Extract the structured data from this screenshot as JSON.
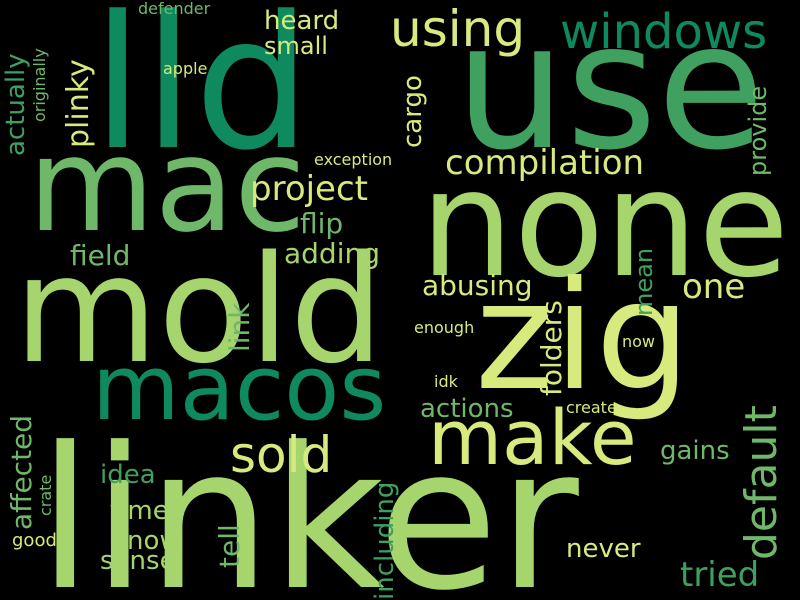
{
  "palette": {
    "background": "#000000",
    "dark_green": "#0f8a5f",
    "green": "#3fa060",
    "mid_green": "#6fb86a",
    "light_green": "#a6d46d",
    "yellow_green": "#d6ea7d"
  },
  "words": {
    "lld": "lld",
    "use": "use",
    "using": "using",
    "windows": "windows",
    "mac": "mac",
    "none": "none",
    "mold": "mold",
    "zig": "zig",
    "macos": "macos",
    "make": "make",
    "linker": "linker",
    "default": "default",
    "compilation": "compilation",
    "project": "project",
    "plinky": "plinky",
    "actually": "actually",
    "originally": "originally",
    "defender": "defender",
    "apple": "apple",
    "heard": "heard",
    "small": "small",
    "cargo": "cargo",
    "provide": "provide",
    "exception": "exception",
    "flip": "flip",
    "field": "field",
    "adding": "adding",
    "abusing": "abusing",
    "one": "one",
    "link": "link",
    "mean": "mean",
    "enough": "enough",
    "now": "now",
    "folders": "folders",
    "idk": "idk",
    "actions": "actions",
    "create": "create",
    "sold": "sold",
    "affected": "affected",
    "idea": "idea",
    "gains": "gains",
    "crate": "crate",
    "times": "times",
    "tell": "tell",
    "good": "good",
    "know": "know",
    "including": "including",
    "sense": "sense",
    "never": "never",
    "tried": "tried"
  }
}
